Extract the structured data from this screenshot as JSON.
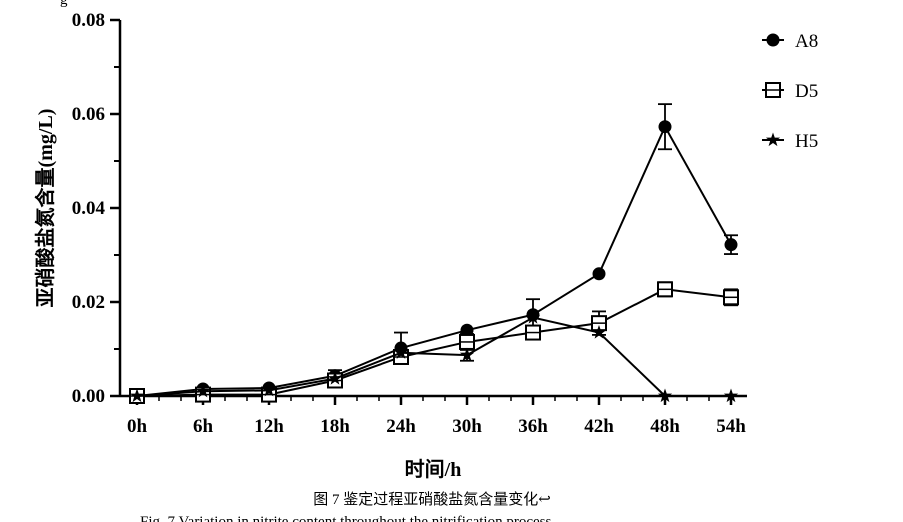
{
  "chart_data": {
    "type": "line",
    "categories": [
      "0h",
      "6h",
      "12h",
      "18h",
      "24h",
      "30h",
      "36h",
      "42h",
      "48h",
      "54h"
    ],
    "xlabel": "时间/h",
    "ylabel": "亚硝酸盐氮含量(mg/L)",
    "ylim": [
      0,
      0.08
    ],
    "yticks": [
      "0.00",
      "0.02",
      "0.04",
      "0.06",
      "0.08"
    ],
    "grid": false,
    "legend_position": "top-right",
    "series": [
      {
        "name": "A8",
        "marker": "filled-circle",
        "values": [
          0.0,
          0.0015,
          0.0017,
          0.0043,
          0.0102,
          0.014,
          0.0173,
          0.026,
          0.0573,
          0.0322
        ],
        "errors": [
          0.0,
          0.0,
          0.0,
          0.0012,
          0.0033,
          0.0,
          0.0033,
          0.0,
          0.0048,
          0.002
        ]
      },
      {
        "name": "D5",
        "marker": "open-square",
        "values": [
          0.0,
          0.0003,
          0.0003,
          0.0033,
          0.0083,
          0.0115,
          0.0135,
          0.0155,
          0.0227,
          0.021
        ],
        "errors": [
          0.0,
          0.0,
          0.0,
          0.0,
          0.0,
          0.0017,
          0.0,
          0.0025,
          0.0015,
          0.0017
        ]
      },
      {
        "name": "H5",
        "marker": "star",
        "values": [
          0.0,
          0.001,
          0.0012,
          0.0037,
          0.0092,
          0.0087,
          0.0167,
          0.0135,
          0.0,
          0.0
        ],
        "errors": [
          0.0,
          0.0,
          0.0,
          0.0,
          0.0,
          0.0012,
          0.0,
          0.0,
          0.0,
          0.0
        ]
      }
    ]
  },
  "caption": "图 7 鉴定过程亚硝酸盐氮含量变化↩",
  "cropped_top_text": "g",
  "cropped_bottom_text": "Fig. 7  Variation in nitrite content throughout the nitrification process",
  "colors": {
    "line": "#000000",
    "background": "#ffffff"
  }
}
